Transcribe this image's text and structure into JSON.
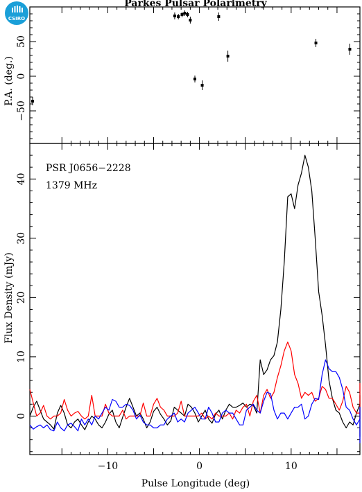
{
  "title": "Parkes Pulsar Polarimetry",
  "logo_text": "CSIRO",
  "colors": {
    "total": "#000000",
    "linear": "#ff0000",
    "circular": "#0000ff",
    "logo": "#1a9fd8"
  },
  "chart_data": [
    {
      "type": "scatter",
      "ylabel": "P.A. (deg.)",
      "xlim": [
        -18.5,
        17.5
      ],
      "ylim": [
        -97,
        100
      ],
      "yticks": [
        50,
        0,
        -50
      ],
      "points": [
        {
          "x": -18.2,
          "y": -36,
          "err": 6
        },
        {
          "x": -2.7,
          "y": 87,
          "err": 5
        },
        {
          "x": -2.3,
          "y": 86,
          "err": 4
        },
        {
          "x": -1.9,
          "y": 89,
          "err": 4
        },
        {
          "x": -1.6,
          "y": 91,
          "err": 4
        },
        {
          "x": -1.3,
          "y": 89,
          "err": 4
        },
        {
          "x": -1.0,
          "y": 81,
          "err": 5
        },
        {
          "x": -0.5,
          "y": -4,
          "err": 5
        },
        {
          "x": 0.3,
          "y": -13,
          "err": 7
        },
        {
          "x": 2.1,
          "y": 86,
          "err": 6
        },
        {
          "x": 3.1,
          "y": 29,
          "err": 8
        },
        {
          "x": 12.7,
          "y": 48,
          "err": 6
        },
        {
          "x": 16.4,
          "y": 39,
          "err": 8
        }
      ]
    },
    {
      "type": "line",
      "xlabel": "Pulse Longitude (deg)",
      "ylabel": "Flux Density (mJy)",
      "xlim": [
        -18.5,
        17.5
      ],
      "ylim": [
        -6.5,
        46
      ],
      "xticks": [
        -10,
        0,
        10
      ],
      "yticks": [
        0,
        10,
        20,
        30,
        40
      ],
      "annotations": [
        "PSR J0656−2228",
        "1379 MHz"
      ],
      "x_start": -18.5,
      "x_step": 0.375,
      "series": [
        {
          "values": [
            0,
            1.5,
            2.5,
            1,
            -0.5,
            -1,
            -1.5,
            -2.2,
            0.5,
            1.8,
            0.5,
            -1.5,
            -2,
            -1,
            -0.5,
            -1.5,
            -2.3,
            -1,
            0,
            -0.5,
            -1.5,
            -2,
            -1,
            0.3,
            1,
            -1,
            -2,
            -0.2,
            1.5,
            3,
            1.5,
            0,
            0.5,
            -0.5,
            -2,
            -1,
            0.8,
            1.5,
            0.3,
            -0.5,
            -1.5,
            -0.8,
            1.5,
            1,
            0.5,
            0,
            2,
            1.5,
            0.5,
            -1,
            0,
            1,
            -0.5,
            -1.2,
            0.3,
            1,
            -0.5,
            1,
            2,
            1.5,
            1.5,
            1.8,
            2.2,
            1.5,
            2,
            1.8,
            0.5,
            9.5,
            7,
            7.8,
            9.5,
            10.2,
            12.5,
            18,
            26,
            37,
            37.5,
            35,
            39,
            41,
            44,
            42,
            38,
            30,
            21,
            17,
            12,
            6,
            3,
            1,
            0.5,
            -1,
            -2,
            -1,
            -1.5,
            0.5,
            2,
            3.5,
            2,
            0,
            -1,
            -1.5,
            -2,
            -1,
            -2.2,
            -1,
            -1,
            -3.5,
            0,
            0.5,
            -0.5,
            -2.5,
            -1.5,
            0,
            1.5,
            1,
            0,
            -1.5,
            -1.5,
            -0.8,
            -1.5,
            -1,
            0,
            1.5,
            -1,
            -1.5,
            -1,
            -0.5,
            -1.5,
            -1,
            0,
            2,
            0.5,
            -0.5,
            -1.5,
            -1,
            2,
            1,
            1.2,
            -2,
            -0.5,
            -1.5,
            -2.5,
            -0.5,
            -1.8,
            1.5,
            1.8,
            -0.3,
            -0.5,
            -2.5,
            -1,
            0.3,
            -1.5,
            -2.3,
            -0.5,
            2,
            2.3,
            1,
            0.5,
            1.5,
            0
          ]
        },
        {
          "values": [
            4.5,
            2.2,
            0,
            0.5,
            1.8,
            0,
            -0.5,
            0,
            0,
            0.5,
            2.8,
            1,
            0,
            0.5,
            0.8,
            0,
            -0.5,
            0,
            3.5,
            0,
            0,
            0,
            2,
            0.5,
            0,
            0,
            0,
            1,
            -0.5,
            0,
            0,
            0,
            0,
            2.2,
            0,
            0,
            2,
            3,
            1.5,
            1,
            0,
            0,
            0,
            0.5,
            2.5,
            0,
            0,
            0,
            0,
            0,
            0.5,
            -0.5,
            0,
            -0.5,
            0.5,
            0,
            0,
            0,
            0.5,
            -0.5,
            1,
            0.5,
            1.5,
            2,
            0,
            2.5,
            3.5,
            0.5,
            3.5,
            4.5,
            3,
            4,
            6.5,
            8.5,
            11,
            12.5,
            11,
            7,
            5.5,
            3,
            4,
            3.5,
            4,
            2.5,
            3,
            5,
            4.5,
            3,
            3,
            2,
            1,
            2.5,
            5,
            4,
            1.5,
            0.5,
            0.5,
            2,
            1.8,
            0,
            0.5,
            1.5,
            1,
            2.2,
            0.8,
            1.5,
            -0.5,
            0,
            0,
            2,
            1,
            2.5,
            1.5,
            2,
            0,
            2,
            0.8,
            0.5,
            1.5,
            1.8,
            0,
            2.5,
            0.5,
            0,
            0,
            1,
            2,
            2.2,
            1.5,
            2.2,
            0,
            0.5,
            2.5,
            1.5,
            0,
            1.5,
            0,
            1.3,
            0,
            2.5,
            0,
            2.2,
            0,
            2.5,
            2,
            3.5,
            5.5,
            4,
            2,
            1,
            1.5,
            1.5,
            5,
            1,
            1.5,
            2,
            2.5,
            0.5,
            3.5,
            3,
            0.5,
            3,
            4.5,
            3,
            1.5
          ]
        },
        {
          "values": [
            -1.5,
            -2.2,
            -1.8,
            -1.5,
            -2,
            -1.5,
            -2.3,
            -2.5,
            -1,
            -2,
            -2.5,
            -1.5,
            -1.2,
            -1.8,
            -2.5,
            -0.5,
            -1.5,
            -0.5,
            -1.5,
            0,
            -0.5,
            0.5,
            1.5,
            1,
            2.8,
            2.5,
            1.5,
            1.5,
            2,
            1.8,
            1,
            -0.5,
            0.2,
            -1,
            -1.5,
            -1.5,
            -2,
            -2,
            -1.5,
            -1.5,
            -0.5,
            0,
            0.5,
            -1,
            -0.5,
            -1,
            0.5,
            1,
            1.5,
            0.5,
            -0.5,
            -0.5,
            1.5,
            0.5,
            -1,
            -1,
            0.5,
            1,
            0.5,
            0.5,
            -0.5,
            -1.5,
            -1.5,
            1,
            1.5,
            2,
            1,
            0.5,
            2.5,
            4,
            3.8,
            1,
            -0.5,
            0.5,
            0.5,
            -0.5,
            0.5,
            1.5,
            1.5,
            2,
            -0.5,
            0,
            2,
            3,
            2.8,
            7,
            9.5,
            8,
            7.5,
            7.5,
            6.5,
            4.5,
            1.5,
            1,
            -0.5,
            -1.5,
            -0.5,
            -1.5,
            -1.5,
            -2,
            -1.5,
            0,
            0.5,
            -1,
            -0.5,
            0,
            -1,
            -1.5,
            -0.5,
            -1,
            -1.5,
            -2,
            -4,
            -3,
            -1,
            0.5,
            1,
            0.5,
            0,
            -0.5,
            -1,
            -1.5,
            -1,
            -1.3,
            -2.5,
            -2,
            -1.5,
            -1.5,
            -0.5,
            -1.5,
            -1,
            -1.8,
            -1,
            -1.5,
            -0.8,
            0.5,
            -1,
            -0.8,
            -1.5,
            -1.5,
            -0.8,
            -1.5,
            -1,
            -1,
            -1.8,
            -0.5,
            -1,
            -2,
            -1.5,
            -2.5,
            0,
            1.5,
            -1,
            -0.5,
            -1.5,
            -1.8,
            -1.5,
            -0.5,
            0.5,
            -1.5,
            -2,
            -4.5,
            -2,
            0,
            -1.5
          ]
        }
      ]
    }
  ]
}
